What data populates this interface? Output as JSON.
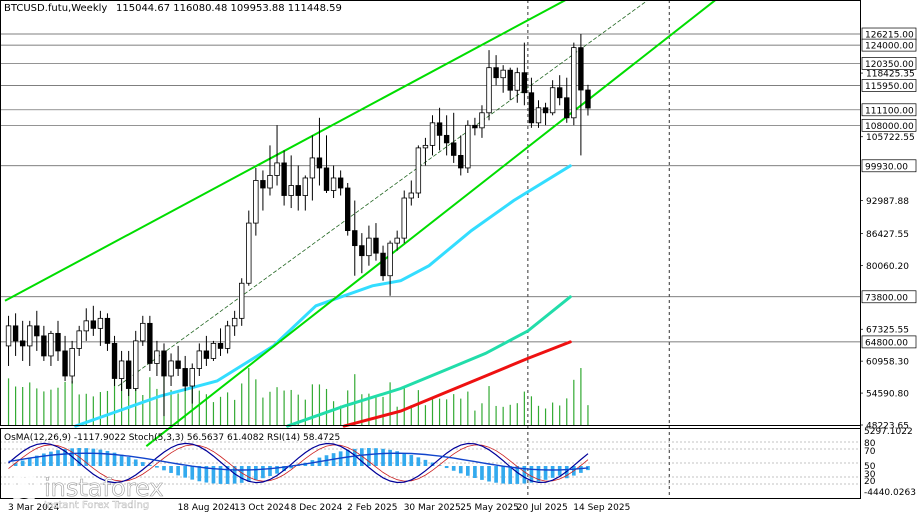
{
  "header": {
    "symbol": "BTCUSD.futu,Weekly",
    "ohlc": "115044.67 116080.48 109953.88 111448.59"
  },
  "indicator_label": "OsMA(12,26,9) -1117.9022  Stoch(5,3,3) 56.5637 61.4082  RSI(14) 58.4725",
  "brand": {
    "name": "instaforex",
    "tagline": "Instant Forex Trading"
  },
  "colors": {
    "bull_candle": "#ffffff",
    "bear_candle": "#000000",
    "channel": "#00dd00",
    "ema_cyan": "#33ddff",
    "ema_green": "#22ddaa",
    "ema_red": "#ee1111",
    "volume": "#33aa33",
    "osma": "#33aaee",
    "stoch_main": "#000099",
    "stoch_signal": "#cc2222",
    "rsi": "#1144cc"
  },
  "chart_data": {
    "type": "candlestick",
    "timeframe": "Weekly",
    "ylim": [
      48223.65,
      133000
    ],
    "xlim": [
      0,
      121
    ],
    "x_ticks": [
      {
        "label": "3 Mar 2024",
        "x": 0
      },
      {
        "label": "18 Aug 2024",
        "x": 24
      },
      {
        "label": "13 Oct 2024",
        "x": 32
      },
      {
        "label": "8 Dec 2024",
        "x": 40
      },
      {
        "label": "2 Feb 2025",
        "x": 48
      },
      {
        "label": "30 Mar 2025",
        "x": 56
      },
      {
        "label": "25 May 2025",
        "x": 64
      },
      {
        "label": "20 Jul 2025",
        "x": 72
      },
      {
        "label": "14 Sep 2025",
        "x": 80
      }
    ],
    "y_ticks": [
      {
        "value": 118425,
        "label": "118425.35"
      },
      {
        "value": 105722.55,
        "label": "105722.55"
      },
      {
        "value": 92987.88,
        "label": "92987.88"
      },
      {
        "value": 86427.55,
        "label": "86427.55"
      },
      {
        "value": 80060.2,
        "label": "80060.20"
      },
      {
        "value": 67325.55,
        "label": "67325.55"
      },
      {
        "value": 60958.3,
        "label": "60958.30"
      },
      {
        "value": 54590.8,
        "label": "54590.80"
      },
      {
        "value": 48223.65,
        "label": "48223.65"
      }
    ],
    "level_lines": [
      {
        "value": 126215,
        "label": "126215.00"
      },
      {
        "value": 124000,
        "label": "124000.00"
      },
      {
        "value": 120350,
        "label": "120350.00"
      },
      {
        "value": 115950,
        "label": "115950.00",
        "current": true
      },
      {
        "value": 111100,
        "label": "111100.00"
      },
      {
        "value": 108000,
        "label": "108000.00"
      },
      {
        "value": 99930,
        "label": "99930.00"
      },
      {
        "value": 73800,
        "label": "73800.00"
      },
      {
        "value": 64800,
        "label": "64800.00"
      }
    ],
    "channel": {
      "lower": [
        [
          20,
          44000
        ],
        [
          101,
          133500
        ]
      ],
      "upper": [
        [
          0,
          73000
        ],
        [
          80,
          133500
        ]
      ],
      "mid": [
        [
          16,
          56000
        ],
        [
          91,
          133000
        ]
      ]
    },
    "moving_averages": [
      {
        "color": "cyan",
        "points": [
          [
            10,
            48000
          ],
          [
            22,
            54000
          ],
          [
            30,
            57000
          ],
          [
            38,
            64000
          ],
          [
            44,
            72000
          ],
          [
            52,
            76000
          ],
          [
            56,
            77000
          ],
          [
            60,
            80000
          ],
          [
            66,
            87000
          ],
          [
            72,
            93000
          ],
          [
            80,
            99930
          ]
        ]
      },
      {
        "color": "green",
        "points": [
          [
            40,
            48000
          ],
          [
            48,
            52000
          ],
          [
            56,
            55500
          ],
          [
            62,
            59000
          ],
          [
            68,
            62500
          ],
          [
            74,
            67000
          ],
          [
            80,
            73800
          ]
        ]
      },
      {
        "color": "red",
        "points": [
          [
            48,
            48000
          ],
          [
            56,
            51000
          ],
          [
            62,
            54500
          ],
          [
            68,
            58000
          ],
          [
            74,
            61500
          ],
          [
            80,
            64800
          ]
        ]
      }
    ],
    "candles": [
      {
        "o": 64000,
        "h": 70000,
        "l": 60000,
        "c": 68000
      },
      {
        "o": 68000,
        "h": 70500,
        "l": 62000,
        "c": 65000
      },
      {
        "o": 65000,
        "h": 69000,
        "l": 61000,
        "c": 64000
      },
      {
        "o": 64000,
        "h": 69000,
        "l": 60000,
        "c": 68000
      },
      {
        "o": 68000,
        "h": 71000,
        "l": 63000,
        "c": 66000
      },
      {
        "o": 66000,
        "h": 68000,
        "l": 61000,
        "c": 62000
      },
      {
        "o": 62000,
        "h": 67000,
        "l": 60000,
        "c": 66500
      },
      {
        "o": 66500,
        "h": 69000,
        "l": 61000,
        "c": 63000
      },
      {
        "o": 63000,
        "h": 66000,
        "l": 57000,
        "c": 58000
      },
      {
        "o": 58000,
        "h": 65000,
        "l": 56500,
        "c": 63500
      },
      {
        "o": 63500,
        "h": 68000,
        "l": 62000,
        "c": 67000
      },
      {
        "o": 67000,
        "h": 71500,
        "l": 65000,
        "c": 69000
      },
      {
        "o": 69000,
        "h": 72000,
        "l": 66000,
        "c": 67500
      },
      {
        "o": 67500,
        "h": 71000,
        "l": 64000,
        "c": 69500
      },
      {
        "o": 69500,
        "h": 70500,
        "l": 63000,
        "c": 64500
      },
      {
        "o": 64500,
        "h": 66000,
        "l": 56000,
        "c": 57500
      },
      {
        "o": 57500,
        "h": 63000,
        "l": 55000,
        "c": 61000
      },
      {
        "o": 61000,
        "h": 63000,
        "l": 54000,
        "c": 55500
      },
      {
        "o": 55500,
        "h": 67000,
        "l": 55000,
        "c": 65000
      },
      {
        "o": 65000,
        "h": 70000,
        "l": 64000,
        "c": 68500
      },
      {
        "o": 68500,
        "h": 70000,
        "l": 59000,
        "c": 60500
      },
      {
        "o": 60500,
        "h": 65000,
        "l": 58000,
        "c": 63000
      },
      {
        "o": 63000,
        "h": 64500,
        "l": 50000,
        "c": 58000
      },
      {
        "o": 58000,
        "h": 62500,
        "l": 56000,
        "c": 61000
      },
      {
        "o": 61000,
        "h": 64000,
        "l": 58000,
        "c": 59500
      },
      {
        "o": 59500,
        "h": 62000,
        "l": 55000,
        "c": 56000
      },
      {
        "o": 56000,
        "h": 60500,
        "l": 52500,
        "c": 59500
      },
      {
        "o": 59500,
        "h": 64500,
        "l": 58000,
        "c": 63000
      },
      {
        "o": 63000,
        "h": 66000,
        "l": 60000,
        "c": 61500
      },
      {
        "o": 61500,
        "h": 65000,
        "l": 61000,
        "c": 64500
      },
      {
        "o": 64500,
        "h": 67500,
        "l": 62000,
        "c": 63500
      },
      {
        "o": 63500,
        "h": 69000,
        "l": 62500,
        "c": 68000
      },
      {
        "o": 68000,
        "h": 71000,
        "l": 66000,
        "c": 69500
      },
      {
        "o": 69500,
        "h": 77500,
        "l": 68000,
        "c": 76500
      },
      {
        "o": 76500,
        "h": 91000,
        "l": 76000,
        "c": 88500
      },
      {
        "o": 88500,
        "h": 99500,
        "l": 86000,
        "c": 97000
      },
      {
        "o": 97000,
        "h": 99000,
        "l": 91000,
        "c": 95500
      },
      {
        "o": 95500,
        "h": 104000,
        "l": 94000,
        "c": 98000
      },
      {
        "o": 98000,
        "h": 108000,
        "l": 96000,
        "c": 100500
      },
      {
        "o": 100500,
        "h": 103000,
        "l": 92000,
        "c": 94000
      },
      {
        "o": 94000,
        "h": 102000,
        "l": 91500,
        "c": 96000
      },
      {
        "o": 96000,
        "h": 100000,
        "l": 91000,
        "c": 94000
      },
      {
        "o": 94000,
        "h": 98000,
        "l": 91000,
        "c": 97500
      },
      {
        "o": 97500,
        "h": 106000,
        "l": 93000,
        "c": 101500
      },
      {
        "o": 101500,
        "h": 109500,
        "l": 96000,
        "c": 99500
      },
      {
        "o": 99500,
        "h": 106000,
        "l": 94500,
        "c": 95000
      },
      {
        "o": 95000,
        "h": 100000,
        "l": 93500,
        "c": 97500
      },
      {
        "o": 97500,
        "h": 99000,
        "l": 94000,
        "c": 95500
      },
      {
        "o": 95500,
        "h": 96500,
        "l": 86000,
        "c": 87000
      },
      {
        "o": 87000,
        "h": 93000,
        "l": 78000,
        "c": 84000
      },
      {
        "o": 84000,
        "h": 86500,
        "l": 78500,
        "c": 82000
      },
      {
        "o": 82000,
        "h": 88000,
        "l": 80000,
        "c": 85500
      },
      {
        "o": 85500,
        "h": 88500,
        "l": 81000,
        "c": 82500
      },
      {
        "o": 82500,
        "h": 84000,
        "l": 77000,
        "c": 78000
      },
      {
        "o": 78000,
        "h": 85000,
        "l": 74000,
        "c": 84500
      },
      {
        "o": 84500,
        "h": 87000,
        "l": 83000,
        "c": 85500
      },
      {
        "o": 85500,
        "h": 95000,
        "l": 84500,
        "c": 93500
      },
      {
        "o": 93500,
        "h": 97000,
        "l": 92000,
        "c": 94500
      },
      {
        "o": 94500,
        "h": 104000,
        "l": 93500,
        "c": 103500
      },
      {
        "o": 103500,
        "h": 105500,
        "l": 100000,
        "c": 104000
      },
      {
        "o": 104000,
        "h": 110000,
        "l": 102000,
        "c": 108500
      },
      {
        "o": 108500,
        "h": 111500,
        "l": 103000,
        "c": 106000
      },
      {
        "o": 106000,
        "h": 110000,
        "l": 102000,
        "c": 104500
      },
      {
        "o": 104500,
        "h": 110500,
        "l": 100500,
        "c": 102000
      },
      {
        "o": 102000,
        "h": 106000,
        "l": 98000,
        "c": 99500
      },
      {
        "o": 99500,
        "h": 109000,
        "l": 98500,
        "c": 108000
      },
      {
        "o": 108000,
        "h": 109500,
        "l": 106000,
        "c": 107500
      },
      {
        "o": 107500,
        "h": 112000,
        "l": 105500,
        "c": 110500
      },
      {
        "o": 110500,
        "h": 123000,
        "l": 109000,
        "c": 119500
      },
      {
        "o": 119500,
        "h": 122000,
        "l": 116000,
        "c": 117500
      },
      {
        "o": 117500,
        "h": 120000,
        "l": 114500,
        "c": 119000
      },
      {
        "o": 119000,
        "h": 119500,
        "l": 113000,
        "c": 115000
      },
      {
        "o": 115000,
        "h": 119500,
        "l": 112500,
        "c": 118500
      },
      {
        "o": 118500,
        "h": 124500,
        "l": 112000,
        "c": 114500
      },
      {
        "o": 114500,
        "h": 117500,
        "l": 107500,
        "c": 108500
      },
      {
        "o": 108500,
        "h": 113000,
        "l": 107500,
        "c": 111500
      },
      {
        "o": 111500,
        "h": 112500,
        "l": 108000,
        "c": 110500
      },
      {
        "o": 110500,
        "h": 117000,
        "l": 110000,
        "c": 115500
      },
      {
        "o": 115500,
        "h": 118000,
        "l": 112000,
        "c": 113500
      },
      {
        "o": 113500,
        "h": 117500,
        "l": 108500,
        "c": 109500
      },
      {
        "o": 109500,
        "h": 124500,
        "l": 108000,
        "c": 123500
      },
      {
        "o": 123500,
        "h": 126215,
        "l": 102000,
        "c": 115044
      },
      {
        "o": 115044,
        "h": 116080,
        "l": 109953,
        "c": 111448
      }
    ],
    "volume_panel": {
      "ylim": [
        0,
        1
      ]
    },
    "oscillators": {
      "osma_value": -1117.9022,
      "stoch_main": 56.5637,
      "stoch_signal": 61.4082,
      "rsi": 58.4725,
      "axis_labels": [
        "5297.1022",
        "80",
        "70",
        "50",
        "30",
        "20",
        "-4440.0263"
      ]
    }
  }
}
